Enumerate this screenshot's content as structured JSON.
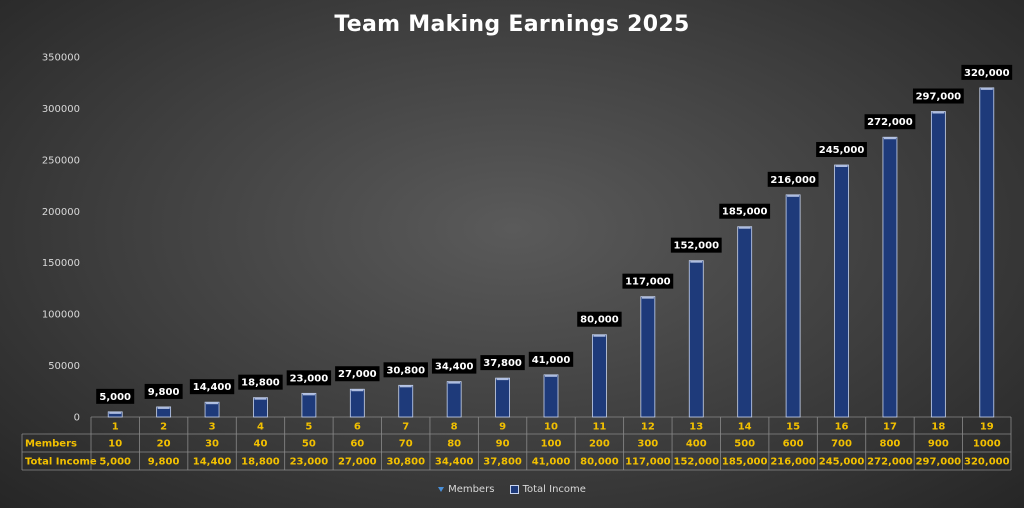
{
  "chart_data": {
    "type": "bar",
    "title": "Team Making Earnings 2025",
    "categories": [
      "1",
      "2",
      "3",
      "4",
      "5",
      "6",
      "7",
      "8",
      "9",
      "10",
      "11",
      "12",
      "13",
      "14",
      "15",
      "16",
      "17",
      "18",
      "19"
    ],
    "ylim": [
      0,
      350000
    ],
    "yticks": [
      "0",
      "50000",
      "100000",
      "150000",
      "200000",
      "250000",
      "300000",
      "350000"
    ],
    "series": [
      {
        "name": "Members",
        "values": [
          10,
          20,
          30,
          40,
          50,
          60,
          70,
          80,
          90,
          100,
          200,
          300,
          400,
          500,
          600,
          700,
          800,
          900,
          1000
        ]
      },
      {
        "name": "Total Income",
        "values": [
          5000,
          9800,
          14400,
          18800,
          23000,
          27000,
          30800,
          34400,
          37800,
          41000,
          80000,
          117000,
          152000,
          185000,
          216000,
          245000,
          272000,
          297000,
          320000
        ]
      }
    ],
    "data_labels": [
      "5,000",
      "9,800",
      "14,400",
      "18,800",
      "23,000",
      "27,000",
      "30,800",
      "34,400",
      "37,800",
      "41,000",
      "80,000",
      "117,000",
      "152,000",
      "185,000",
      "216,000",
      "245,000",
      "272,000",
      "297,000",
      "320,000"
    ],
    "table": {
      "rows": [
        {
          "label": "Members",
          "cells": [
            "10",
            "20",
            "30",
            "40",
            "50",
            "60",
            "70",
            "80",
            "90",
            "100",
            "200",
            "300",
            "400",
            "500",
            "600",
            "700",
            "800",
            "900",
            "1000"
          ]
        },
        {
          "label": "Total Income",
          "cells": [
            "5,000",
            "9,800",
            "14,400",
            "18,800",
            "23,000",
            "27,000",
            "30,800",
            "34,400",
            "37,800",
            "41,000",
            "80,000",
            "117,000",
            "152,000",
            "185,000",
            "216,000",
            "245,000",
            "272,000",
            "297,000",
            "320,000"
          ]
        }
      ]
    },
    "legend": {
      "position": "bottom",
      "items": [
        "Members",
        "Total Income"
      ]
    },
    "colors": {
      "bar": "#1e3a7a",
      "bar_edge": "#c8d4ee",
      "table_text": "#f2c000",
      "label_bg": "#000000",
      "members_marker": "#4a90d9"
    },
    "grid": false
  }
}
